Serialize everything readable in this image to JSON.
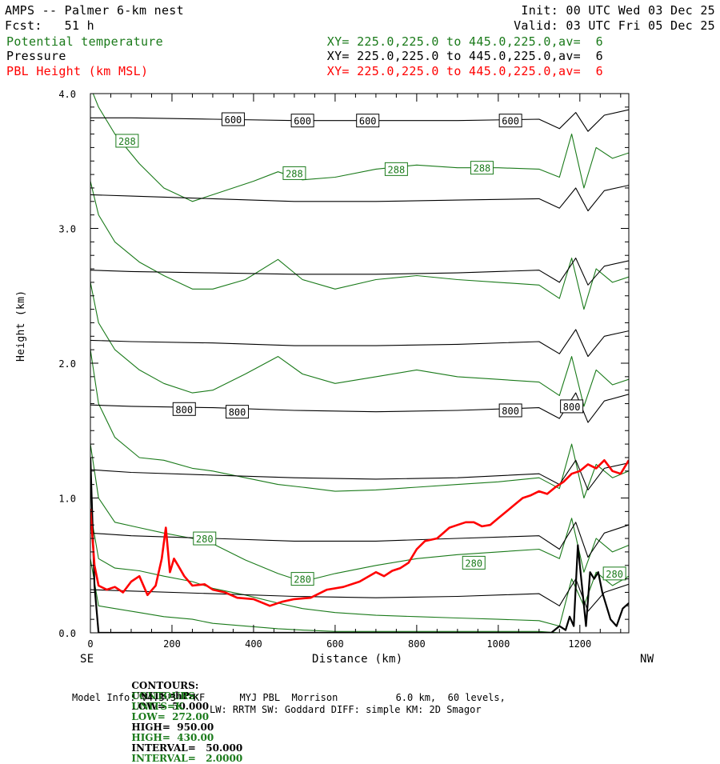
{
  "header": {
    "title_left": "AMPS -- Palmer 6-km nest",
    "fcst": "Fcst:   51 h",
    "init": "Init: 00 UTC Wed 03 Dec 25",
    "valid": "Valid: 03 UTC Fri 05 Dec 25",
    "fields": [
      {
        "name": "Potential temperature",
        "xy": "XY= 225.0,225.0 to 445.0,225.0,av=  6",
        "color": "#1a7a1a"
      },
      {
        "name": "Pressure",
        "xy": "XY= 225.0,225.0 to 445.0,225.0,av=  6",
        "color": "#000000"
      },
      {
        "name": "PBL Height (km MSL)",
        "xy": "XY= 225.0,225.0 to 445.0,225.0,av=  6",
        "color": "#ff0000"
      }
    ]
  },
  "axes": {
    "ylabel": "Height (km)",
    "xlabel": "Distance (km)",
    "left_end": "SE",
    "right_end": "NW",
    "y_tick_labels": [
      "0.0",
      "1.0",
      "2.0",
      "3.0",
      "4.0"
    ],
    "x_tick_labels": [
      "0",
      "200",
      "400",
      "600",
      "800",
      "1000",
      "1200"
    ]
  },
  "footer": {
    "contours_p": {
      "prefix": "CONTOURS:",
      "units": "UNITS=hPa",
      "low": "LOW=  50.000",
      "high": "HIGH=  950.00",
      "interval": "INTERVAL=   50.000"
    },
    "contours_t": {
      "prefix": "CONTOURS:",
      "units": "UNITS=K",
      "low": "LOW=  272.00",
      "high": "HIGH=  430.00",
      "interval": "INTERVAL=   2.0000"
    },
    "model_info": "Model Info: V4.3.3   KF      MYJ PBL  Morrison          6.0 km,  60 levels,",
    "model_info2": "LW: RRTM SW: Goddard DIFF: simple KM: 2D Smagor"
  },
  "chart_data": {
    "type": "line",
    "xlim": [
      0,
      1320
    ],
    "ylim": [
      0,
      4.0
    ],
    "xlabel": "Distance (km)",
    "ylabel": "Height (km)",
    "grid": false,
    "colors": {
      "pressure": "#000000",
      "theta": "#1a7a1a",
      "pbl": "#ff0000"
    },
    "pressure_contours": [
      {
        "x": [
          0,
          100,
          300,
          500,
          700,
          900,
          1100,
          1150,
          1190,
          1220,
          1260,
          1320
        ],
        "y": [
          3.82,
          3.82,
          3.81,
          3.8,
          3.8,
          3.8,
          3.81,
          3.74,
          3.86,
          3.72,
          3.84,
          3.88
        ]
      },
      {
        "x": [
          0,
          100,
          300,
          500,
          700,
          900,
          1100,
          1150,
          1190,
          1220,
          1260,
          1320
        ],
        "y": [
          3.25,
          3.24,
          3.22,
          3.2,
          3.2,
          3.21,
          3.22,
          3.15,
          3.3,
          3.13,
          3.28,
          3.32
        ]
      },
      {
        "x": [
          0,
          100,
          300,
          500,
          700,
          900,
          1100,
          1150,
          1190,
          1220,
          1260,
          1320
        ],
        "y": [
          2.69,
          2.68,
          2.67,
          2.66,
          2.66,
          2.67,
          2.69,
          2.6,
          2.78,
          2.58,
          2.72,
          2.76
        ]
      },
      {
        "x": [
          0,
          100,
          300,
          500,
          700,
          900,
          1100,
          1150,
          1190,
          1220,
          1260,
          1320
        ],
        "y": [
          2.17,
          2.16,
          2.15,
          2.13,
          2.13,
          2.14,
          2.16,
          2.07,
          2.25,
          2.05,
          2.2,
          2.24
        ]
      },
      {
        "x": [
          0,
          100,
          300,
          500,
          700,
          900,
          1100,
          1150,
          1190,
          1220,
          1260,
          1320
        ],
        "y": [
          1.69,
          1.68,
          1.67,
          1.65,
          1.64,
          1.65,
          1.67,
          1.59,
          1.78,
          1.56,
          1.72,
          1.77
        ]
      },
      {
        "x": [
          0,
          100,
          300,
          500,
          700,
          900,
          1100,
          1150,
          1190,
          1220,
          1260,
          1320
        ],
        "y": [
          1.21,
          1.19,
          1.17,
          1.15,
          1.14,
          1.15,
          1.18,
          1.1,
          1.28,
          1.06,
          1.22,
          1.26
        ]
      },
      {
        "x": [
          0,
          100,
          300,
          500,
          700,
          900,
          1100,
          1150,
          1190,
          1220,
          1260,
          1320
        ],
        "y": [
          0.74,
          0.72,
          0.7,
          0.68,
          0.68,
          0.7,
          0.72,
          0.62,
          0.82,
          0.56,
          0.74,
          0.8
        ]
      },
      {
        "x": [
          0,
          100,
          300,
          500,
          700,
          900,
          1100,
          1150,
          1190,
          1220,
          1260,
          1320
        ],
        "y": [
          0.32,
          0.31,
          0.29,
          0.27,
          0.26,
          0.27,
          0.29,
          0.2,
          0.4,
          0.16,
          0.3,
          0.36
        ]
      }
    ],
    "terrain": {
      "x": [
        0,
        10,
        20,
        40,
        1130,
        1150,
        1165,
        1175,
        1185,
        1195,
        1205,
        1215,
        1225,
        1235,
        1245,
        1255,
        1265,
        1275,
        1290,
        1305,
        1320
      ],
      "y": [
        1.3,
        0.35,
        0.0,
        0.0,
        0.0,
        0.05,
        0.02,
        0.12,
        0.05,
        0.65,
        0.35,
        0.05,
        0.45,
        0.4,
        0.45,
        0.3,
        0.2,
        0.1,
        0.05,
        0.18,
        0.22
      ]
    },
    "theta_contours": [
      {
        "x": [
          0,
          20,
          60,
          120,
          180,
          250,
          300,
          400,
          460,
          520,
          600,
          700,
          800,
          900,
          1000,
          1100,
          1150,
          1180,
          1210,
          1240,
          1280,
          1320
        ],
        "y": [
          4.05,
          3.9,
          3.7,
          3.48,
          3.3,
          3.2,
          3.25,
          3.35,
          3.42,
          3.36,
          3.38,
          3.44,
          3.47,
          3.45,
          3.45,
          3.44,
          3.38,
          3.7,
          3.3,
          3.6,
          3.52,
          3.56
        ]
      },
      {
        "x": [
          0,
          20,
          60,
          120,
          180,
          250,
          300,
          380,
          460,
          520,
          600,
          700,
          800,
          900,
          1000,
          1100,
          1150,
          1180,
          1210,
          1240,
          1280,
          1320
        ],
        "y": [
          3.35,
          3.1,
          2.9,
          2.75,
          2.65,
          2.55,
          2.55,
          2.62,
          2.77,
          2.62,
          2.55,
          2.62,
          2.65,
          2.62,
          2.6,
          2.58,
          2.48,
          2.78,
          2.4,
          2.7,
          2.6,
          2.64
        ]
      },
      {
        "x": [
          0,
          20,
          60,
          120,
          180,
          250,
          300,
          380,
          460,
          520,
          600,
          700,
          800,
          900,
          1000,
          1100,
          1150,
          1180,
          1210,
          1240,
          1280,
          1320
        ],
        "y": [
          2.6,
          2.3,
          2.1,
          1.95,
          1.85,
          1.78,
          1.8,
          1.92,
          2.05,
          1.92,
          1.85,
          1.9,
          1.95,
          1.9,
          1.88,
          1.86,
          1.76,
          2.05,
          1.68,
          1.95,
          1.84,
          1.88
        ]
      },
      {
        "x": [
          0,
          20,
          60,
          120,
          180,
          250,
          300,
          380,
          460,
          520,
          600,
          700,
          800,
          900,
          1000,
          1100,
          1150,
          1180,
          1210,
          1240,
          1280,
          1320
        ],
        "y": [
          2.1,
          1.7,
          1.45,
          1.3,
          1.28,
          1.22,
          1.2,
          1.15,
          1.1,
          1.08,
          1.05,
          1.06,
          1.08,
          1.1,
          1.12,
          1.15,
          1.07,
          1.4,
          1.0,
          1.25,
          1.15,
          1.2
        ]
      },
      {
        "x": [
          0,
          20,
          60,
          120,
          180,
          250,
          300,
          380,
          460,
          520,
          600,
          700,
          800,
          900,
          1000,
          1100,
          1150,
          1180,
          1210,
          1240,
          1280,
          1320
        ],
        "y": [
          1.4,
          1.0,
          0.82,
          0.78,
          0.74,
          0.7,
          0.66,
          0.54,
          0.44,
          0.38,
          0.44,
          0.5,
          0.55,
          0.58,
          0.6,
          0.62,
          0.55,
          0.85,
          0.45,
          0.7,
          0.6,
          0.65
        ]
      },
      {
        "x": [
          0,
          20,
          60,
          120,
          180,
          250,
          300,
          380,
          460,
          520,
          600,
          700,
          800,
          900,
          1000,
          1100,
          1150,
          1180,
          1210,
          1240,
          1280,
          1320
        ],
        "y": [
          0.9,
          0.55,
          0.48,
          0.46,
          0.42,
          0.38,
          0.33,
          0.28,
          0.22,
          0.18,
          0.15,
          0.13,
          0.12,
          0.11,
          0.1,
          0.09,
          0.05,
          0.4,
          0.2,
          0.45,
          0.35,
          0.42
        ]
      },
      {
        "x": [
          0,
          20,
          60,
          120,
          180,
          250,
          300,
          380,
          460,
          520,
          600,
          700,
          800,
          900,
          1000,
          1100,
          1150
        ],
        "y": [
          0.55,
          0.2,
          0.18,
          0.15,
          0.12,
          0.1,
          0.07,
          0.05,
          0.03,
          0.02,
          0.01,
          0.01,
          0.01,
          0.01,
          0.01,
          0.01,
          0.0
        ]
      }
    ],
    "pbl_height": {
      "x": [
        0,
        10,
        20,
        40,
        60,
        80,
        100,
        120,
        140,
        160,
        175,
        185,
        195,
        205,
        215,
        230,
        250,
        280,
        300,
        330,
        360,
        400,
        440,
        470,
        500,
        540,
        580,
        620,
        660,
        700,
        720,
        740,
        760,
        780,
        800,
        820,
        850,
        880,
        900,
        920,
        940,
        960,
        980,
        1000,
        1020,
        1040,
        1060,
        1080,
        1100,
        1120,
        1140,
        1160,
        1180,
        1200,
        1220,
        1240,
        1260,
        1280,
        1300,
        1320
      ],
      "y": [
        0.92,
        0.5,
        0.35,
        0.32,
        0.34,
        0.3,
        0.38,
        0.42,
        0.28,
        0.35,
        0.55,
        0.78,
        0.45,
        0.55,
        0.5,
        0.42,
        0.35,
        0.36,
        0.32,
        0.3,
        0.26,
        0.25,
        0.2,
        0.23,
        0.25,
        0.26,
        0.32,
        0.34,
        0.38,
        0.45,
        0.42,
        0.46,
        0.48,
        0.52,
        0.62,
        0.68,
        0.7,
        0.78,
        0.8,
        0.82,
        0.82,
        0.79,
        0.8,
        0.85,
        0.9,
        0.95,
        1.0,
        1.02,
        1.05,
        1.03,
        1.08,
        1.12,
        1.18,
        1.2,
        1.25,
        1.22,
        1.28,
        1.2,
        1.18,
        1.28
      ]
    },
    "labels": [
      {
        "text": "600",
        "x": 350,
        "y": 3.81,
        "series": "pressure"
      },
      {
        "text": "600",
        "x": 520,
        "y": 3.8,
        "series": "pressure"
      },
      {
        "text": "600",
        "x": 680,
        "y": 3.8,
        "series": "pressure"
      },
      {
        "text": "600",
        "x": 1030,
        "y": 3.8,
        "series": "pressure"
      },
      {
        "text": "288",
        "x": 90,
        "y": 3.65,
        "series": "theta"
      },
      {
        "text": "288",
        "x": 500,
        "y": 3.41,
        "series": "theta"
      },
      {
        "text": "288",
        "x": 750,
        "y": 3.44,
        "series": "theta"
      },
      {
        "text": "288",
        "x": 960,
        "y": 3.45,
        "series": "theta"
      },
      {
        "text": "800",
        "x": 230,
        "y": 1.66,
        "series": "pressure"
      },
      {
        "text": "800",
        "x": 360,
        "y": 1.64,
        "series": "pressure"
      },
      {
        "text": "800",
        "x": 1030,
        "y": 1.65,
        "series": "pressure"
      },
      {
        "text": "800",
        "x": 1180,
        "y": 1.68,
        "series": "pressure"
      },
      {
        "text": "280",
        "x": 280,
        "y": 0.7,
        "series": "theta"
      },
      {
        "text": "280",
        "x": 520,
        "y": 0.4,
        "series": "theta"
      },
      {
        "text": "280",
        "x": 940,
        "y": 0.52,
        "series": "theta"
      },
      {
        "text": "280",
        "x": 1285,
        "y": 0.44,
        "series": "theta"
      }
    ]
  }
}
